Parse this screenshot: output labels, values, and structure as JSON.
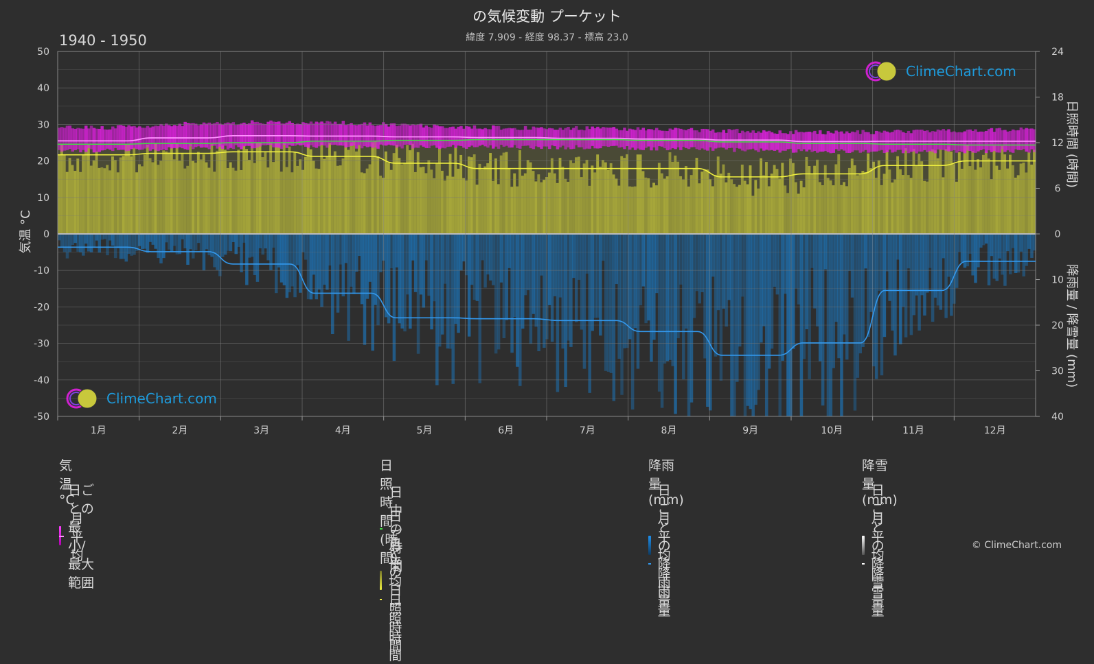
{
  "header": {
    "title": "の気候変動 プーケット",
    "subtitle": "緯度 7.909 - 経度 98.37 - 標高 23.0",
    "period": "1940 - 1950"
  },
  "axes": {
    "left_title": "気温 °C",
    "right_top_title": "日照時間 (時間)",
    "right_bottom_title": "降雨量 / 降雪量 (mm)"
  },
  "legend": {
    "temperature": {
      "heading": "気温 °C",
      "daily_range": "日ごとの最小/最大範囲",
      "monthly_avg": "月平均"
    },
    "sunshine": {
      "heading": "日照時間 (時間)",
      "daylight": "日中の時間",
      "daily_sunshine": "日ごとの日照時間",
      "monthly_avg_sunshine": "月平均日照時間"
    },
    "rain": {
      "heading": "降雨量 (mm)",
      "daily_rain": "日ごとの降雨量",
      "monthly_avg_rain": "月平均降雨量"
    },
    "snow": {
      "heading": "降雪量 (mm)",
      "daily_snow": "日ごとの降雪量",
      "monthly_avg_snow": "月平均降雪量"
    }
  },
  "logo": {
    "text": "ClimeChart.com"
  },
  "copyright": "© ClimeChart.com",
  "colors": {
    "background": "#2e2e2e",
    "temp_range": "#e020e0",
    "temp_avg": "#ff90ff",
    "daylight": "#44dd44",
    "sunshine": "#c8c83c",
    "sunshine_avg": "#f0f040",
    "rain": "#1c78c0",
    "rain_avg": "#3399ee",
    "snow_avg": "#ffffff"
  },
  "chart_data": {
    "type": "line",
    "categories": [
      "1月",
      "2月",
      "3月",
      "4月",
      "5月",
      "6月",
      "7月",
      "8月",
      "9月",
      "10月",
      "11月",
      "12月"
    ],
    "y_left": {
      "label": "気温 °C",
      "ticks": [
        50,
        40,
        30,
        20,
        10,
        0,
        -10,
        -20,
        -30,
        -40,
        -50
      ],
      "range": [
        -50,
        50
      ]
    },
    "y_right_top": {
      "label": "日照時間 (時間)",
      "ticks": [
        24,
        18,
        12,
        6,
        0
      ],
      "range": [
        0,
        24
      ]
    },
    "y_right_bottom": {
      "label": "降雨量 / 降雪量 (mm)",
      "ticks": [
        0,
        10,
        20,
        30,
        40
      ],
      "range": [
        0,
        40
      ]
    },
    "grid": true,
    "series": [
      {
        "name": "月平均",
        "axis": "temperature",
        "values": [
          25.5,
          26.3,
          26.9,
          26.8,
          26.6,
          26.4,
          26.2,
          26.0,
          25.7,
          25.3,
          25.4,
          25.4
        ]
      },
      {
        "name": "日ごとの最小/最大範囲 (min)",
        "axis": "temperature",
        "values": [
          23.5,
          24.0,
          24.5,
          24.5,
          24.5,
          24.5,
          24.3,
          24.0,
          23.5,
          23.3,
          23.2,
          23.3
        ]
      },
      {
        "name": "日ごとの最小/最大範囲 (max)",
        "axis": "temperature",
        "values": [
          28.5,
          29.5,
          30.0,
          29.8,
          29.0,
          28.5,
          28.3,
          28.0,
          27.5,
          27.2,
          27.5,
          28.0
        ]
      },
      {
        "name": "日中の時間",
        "axis": "sunshine",
        "values": [
          11.8,
          11.9,
          12.0,
          12.2,
          12.3,
          12.4,
          12.4,
          12.3,
          12.1,
          11.9,
          11.8,
          11.7
        ]
      },
      {
        "name": "月平均日照時間",
        "axis": "sunshine",
        "values": [
          10.4,
          10.6,
          10.8,
          10.2,
          9.3,
          8.6,
          8.6,
          8.6,
          7.5,
          7.9,
          9.0,
          9.6
        ]
      },
      {
        "name": "月平均降雨量",
        "axis": "rain",
        "values": [
          2.9,
          3.9,
          6.6,
          13.0,
          18.4,
          18.6,
          19.0,
          21.4,
          26.6,
          23.9,
          12.4,
          6.0
        ]
      },
      {
        "name": "月平均降雪量",
        "axis": "rain",
        "values": [
          0,
          0,
          0,
          0,
          0,
          0,
          0,
          0,
          0,
          0,
          0,
          0
        ]
      }
    ]
  }
}
